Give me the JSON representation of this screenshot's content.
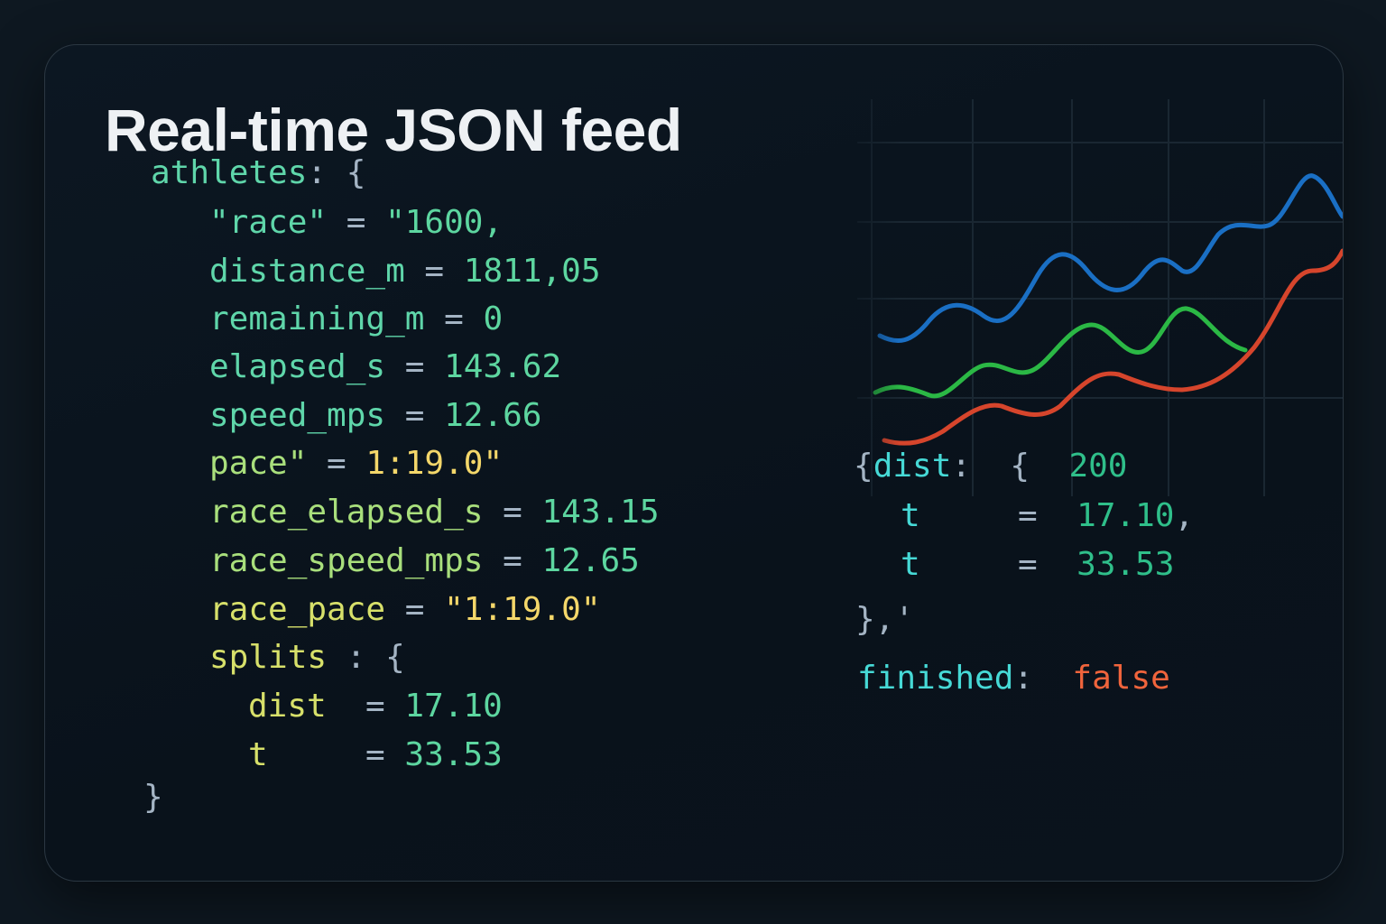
{
  "title": "Real-time JSON feed",
  "colors": {
    "key": "#5fd6aa",
    "number": "#5dd6a0",
    "string": "#f4d76a",
    "punct": "#a4b4c4",
    "cyan": "#46d9d6",
    "false": "#f0643c",
    "chart_blue": "#1a6fc4",
    "chart_green": "#2bb845",
    "chart_red": "#d6452c"
  },
  "chart": {
    "type": "line",
    "series_colors": [
      "blue",
      "green",
      "red"
    ],
    "grid": true
  },
  "code_left": [
    [
      {
        "t": "athletes",
        "r": "key"
      },
      {
        "t": ": {",
        "r": "punct"
      }
    ],
    [
      {
        "t": "\"race\"",
        "r": "key"
      },
      {
        "t": " = ",
        "r": "punct"
      },
      {
        "t": "\"1600,",
        "r": "num"
      }
    ],
    [
      {
        "t": "distance_m",
        "r": "key"
      },
      {
        "t": " = ",
        "r": "punct"
      },
      {
        "t": "1811,05",
        "r": "num"
      }
    ],
    [
      {
        "t": "remaining_m",
        "r": "key"
      },
      {
        "t": " = ",
        "r": "punct"
      },
      {
        "t": "0",
        "r": "num"
      }
    ],
    [
      {
        "t": "elapsed_s",
        "r": "key"
      },
      {
        "t": " = ",
        "r": "punct"
      },
      {
        "t": "143.62",
        "r": "num"
      }
    ],
    [
      {
        "t": "speed_mps",
        "r": "key"
      },
      {
        "t": " = ",
        "r": "punct"
      },
      {
        "t": "12.66",
        "r": "num"
      }
    ],
    [
      {
        "t": "pace\"",
        "r": "key2"
      },
      {
        "t": " = ",
        "r": "punct"
      },
      {
        "t": "1:19.0\"",
        "r": "str"
      }
    ],
    [
      {
        "t": "race_elapsed_s",
        "r": "key2"
      },
      {
        "t": " = ",
        "r": "punct"
      },
      {
        "t": "143.15",
        "r": "num"
      }
    ],
    [
      {
        "t": "race_speed_mps",
        "r": "key2"
      },
      {
        "t": " = ",
        "r": "punct"
      },
      {
        "t": "12.65",
        "r": "num"
      }
    ],
    [
      {
        "t": "race_pace",
        "r": "key3"
      },
      {
        "t": " = ",
        "r": "punct"
      },
      {
        "t": "\"1:19.0\"",
        "r": "str"
      }
    ],
    [
      {
        "t": "splits",
        "r": "key3"
      },
      {
        "t": " : {",
        "r": "punct"
      }
    ],
    [
      {
        "t": "dist",
        "r": "key3"
      },
      {
        "t": "  = ",
        "r": "punct"
      },
      {
        "t": "17.10",
        "r": "num"
      }
    ],
    [
      {
        "t": "t",
        "r": "key3"
      },
      {
        "t": "     = ",
        "r": "punct"
      },
      {
        "t": "33.53",
        "r": "num"
      }
    ],
    [
      {
        "t": "}",
        "r": "punct"
      }
    ]
  ],
  "code_right": [
    [
      {
        "t": "{",
        "r": "punct"
      },
      {
        "t": "dist",
        "r": "cyan"
      },
      {
        "t": ":  {  ",
        "r": "punct"
      },
      {
        "t": "200",
        "r": "num2"
      }
    ],
    [
      {
        "t": "t",
        "r": "cyan"
      },
      {
        "t": "     =  ",
        "r": "punct"
      },
      {
        "t": "17.10",
        "r": "num2"
      },
      {
        "t": ",",
        "r": "punct"
      }
    ],
    [
      {
        "t": "t",
        "r": "cyan"
      },
      {
        "t": "     =  ",
        "r": "punct"
      },
      {
        "t": "33.53",
        "r": "num2"
      }
    ],
    [
      {
        "t": "},'",
        "r": "punct"
      }
    ],
    [
      {
        "t": "finished",
        "r": "cyan"
      },
      {
        "t": ":  ",
        "r": "punct"
      },
      {
        "t": "false",
        "r": "false"
      }
    ]
  ]
}
